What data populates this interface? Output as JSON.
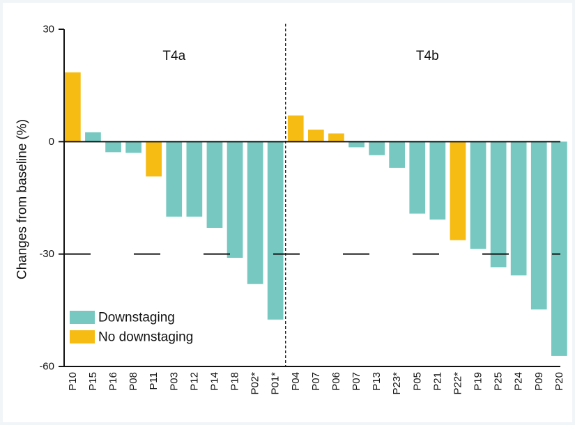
{
  "chart_data": {
    "type": "bar",
    "title": "",
    "xlabel": "",
    "ylabel": "Changes from baseline (%)",
    "ylim": [
      -60,
      30
    ],
    "yticks": [
      30,
      0,
      -30,
      -60
    ],
    "reference_line": -30,
    "colors": {
      "Downstaging": "#76c8c0",
      "No downstaging": "#f6bc13"
    },
    "legend": [
      "Downstaging",
      "No downstaging"
    ],
    "legend_position": "bottom-left",
    "groups": [
      {
        "name": "T4a",
        "bars": [
          {
            "label": "P10",
            "value": 18.5,
            "status": "No downstaging"
          },
          {
            "label": "P15",
            "value": 2.5,
            "status": "Downstaging"
          },
          {
            "label": "P16",
            "value": -2.8,
            "status": "Downstaging"
          },
          {
            "label": "P08",
            "value": -3.0,
            "status": "Downstaging"
          },
          {
            "label": "P11",
            "value": -9.3,
            "status": "No downstaging"
          },
          {
            "label": "P03",
            "value": -20.0,
            "status": "Downstaging"
          },
          {
            "label": "P12",
            "value": -20.0,
            "status": "Downstaging"
          },
          {
            "label": "P14",
            "value": -23.0,
            "status": "Downstaging"
          },
          {
            "label": "P18",
            "value": -31.0,
            "status": "Downstaging"
          },
          {
            "label": "P02*",
            "value": -38.0,
            "status": "Downstaging"
          },
          {
            "label": "P01*",
            "value": -47.5,
            "status": "Downstaging"
          }
        ]
      },
      {
        "name": "T4b",
        "bars": [
          {
            "label": "P04",
            "value": 7.0,
            "status": "No downstaging"
          },
          {
            "label": "P07",
            "value": 3.2,
            "status": "No downstaging"
          },
          {
            "label": "P06",
            "value": 2.2,
            "status": "No downstaging"
          },
          {
            "label": "P07",
            "value": -1.5,
            "status": "Downstaging"
          },
          {
            "label": "P13",
            "value": -3.6,
            "status": "Downstaging"
          },
          {
            "label": "P23*",
            "value": -7.0,
            "status": "Downstaging"
          },
          {
            "label": "P05",
            "value": -19.2,
            "status": "Downstaging"
          },
          {
            "label": "P21",
            "value": -20.8,
            "status": "Downstaging"
          },
          {
            "label": "P22*",
            "value": -26.3,
            "status": "No downstaging"
          },
          {
            "label": "P19",
            "value": -28.6,
            "status": "Downstaging"
          },
          {
            "label": "P25",
            "value": -33.5,
            "status": "Downstaging"
          },
          {
            "label": "P24",
            "value": -35.7,
            "status": "Downstaging"
          },
          {
            "label": "P09",
            "value": -44.8,
            "status": "Downstaging"
          },
          {
            "label": "P20",
            "value": -57.2,
            "status": "Downstaging"
          }
        ]
      }
    ]
  }
}
